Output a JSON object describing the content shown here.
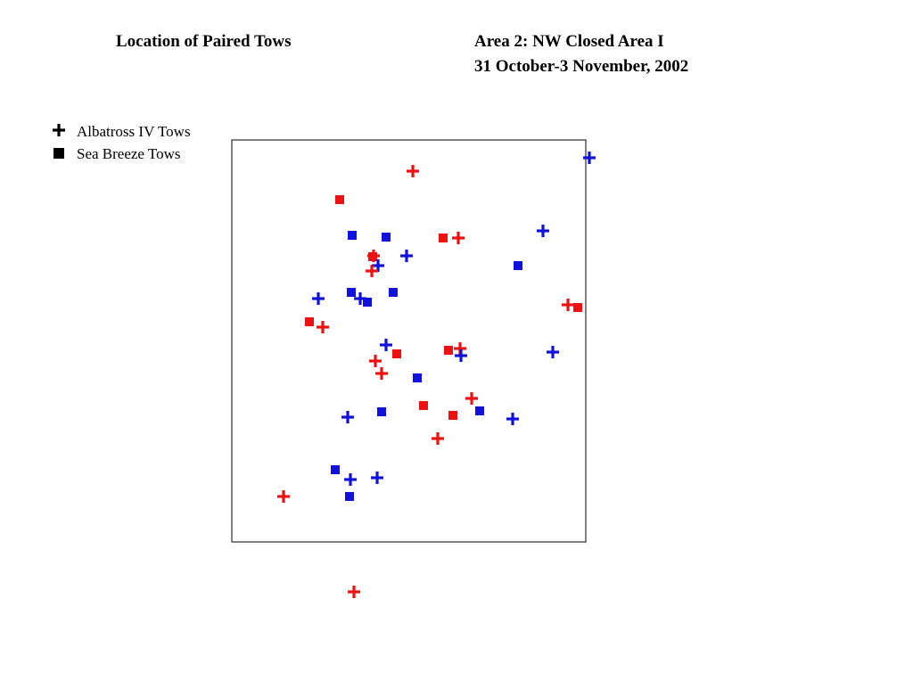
{
  "header": {
    "title": "Location of Paired Tows",
    "area": "Area 2: NW Closed Area I",
    "dates": "31 October-3 November, 2002"
  },
  "legend": [
    {
      "label": "Albatross IV Tows"
    },
    {
      "label": "Sea Breeze Tows"
    }
  ]
}
